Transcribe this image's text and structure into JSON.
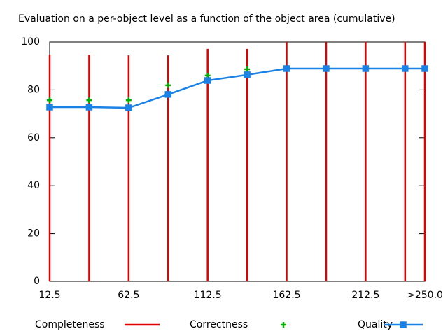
{
  "chart_data": {
    "type": "impulse-scatter-line",
    "title": "Evaluation on a per-object level as a function of the object area (cumulative)",
    "x": [
      12.5,
      37.5,
      62.5,
      87.5,
      112.5,
      137.5,
      162.5,
      187.5,
      212.5,
      237.5,
      250
    ],
    "xlim": [
      12.5,
      250
    ],
    "xticks": [
      12.5,
      62.5,
      112.5,
      162.5,
      212.5,
      {
        "value": 250,
        "label": ">250.0"
      }
    ],
    "ylim": [
      0,
      100
    ],
    "yticks": [
      0,
      20,
      40,
      60,
      80,
      100
    ],
    "series": [
      {
        "name": "Completeness",
        "color": "#e00000",
        "style": "impulses",
        "values": [
          94.7,
          94.7,
          94.4,
          94.4,
          97.1,
          97.1,
          100,
          100,
          100,
          100,
          100
        ]
      },
      {
        "name": "Correctness",
        "color": "#00b000",
        "style": "points",
        "values": [
          75.7,
          75.7,
          75.7,
          81.9,
          86,
          88.6,
          88.9,
          88.9,
          88.9,
          88.9,
          88.9
        ]
      },
      {
        "name": "Quality",
        "color": "#1a82e6",
        "style": "linespoints",
        "values": [
          72.8,
          72.8,
          72.5,
          78.1,
          83.9,
          86.3,
          88.9,
          88.9,
          88.9,
          88.9,
          88.9
        ]
      }
    ]
  }
}
